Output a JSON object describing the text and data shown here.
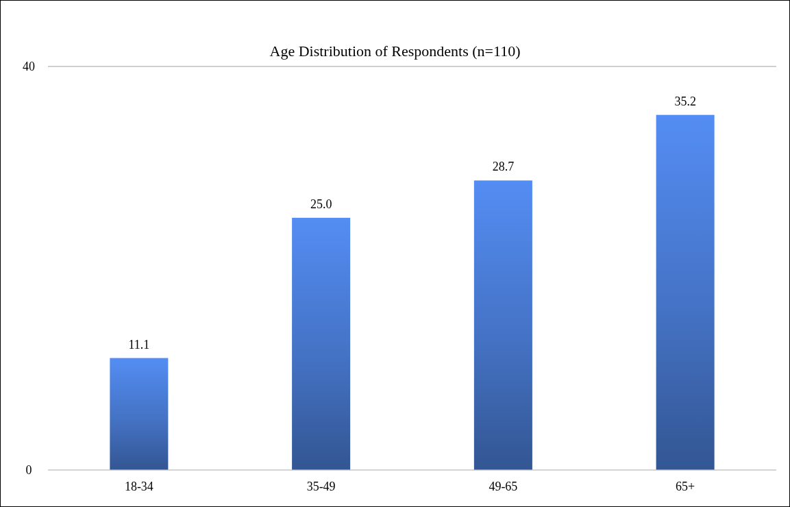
{
  "chart_data": {
    "type": "bar",
    "title": "Age Distribution of Respondents (n=110)",
    "categories": [
      "18-34",
      "35-49",
      "49-65",
      "65+"
    ],
    "values": [
      11.1,
      25.0,
      28.7,
      35.2
    ],
    "value_labels": [
      "11.1",
      "25.0",
      "28.7",
      "35.2"
    ],
    "color": "#4472c4",
    "ylim": [
      0,
      40
    ],
    "yticks": [
      0,
      40
    ],
    "grid": "y"
  }
}
